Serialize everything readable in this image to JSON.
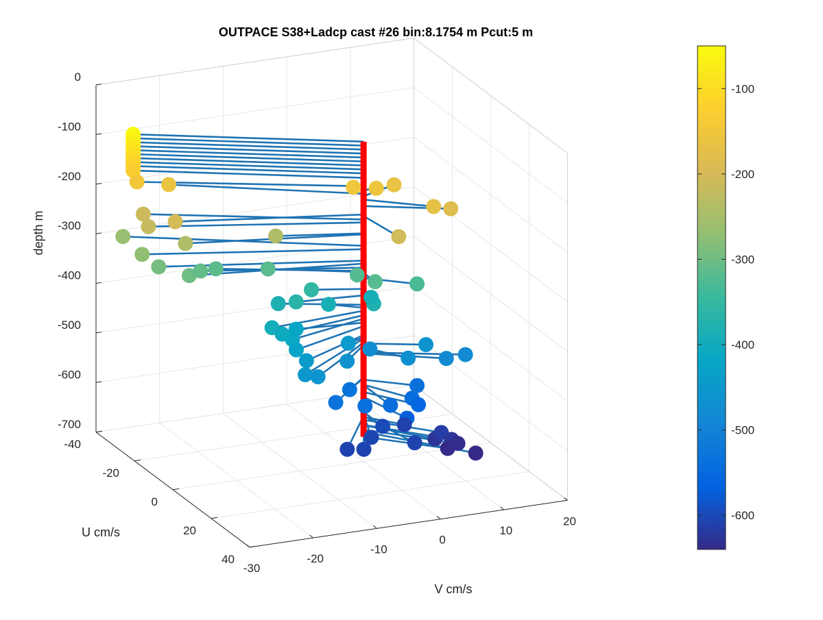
{
  "chart_data": {
    "type": "scatter",
    "title": "OUTPACE S38+Ladcp cast #26 bin:8.1754 m  Pcut:5 m",
    "xlabel": "V cm/s",
    "ylabel": "U cm/s",
    "zlabel": "depth m",
    "xlim": [
      -30,
      20
    ],
    "ylim": [
      -40,
      40
    ],
    "zlim": [
      -700,
      0
    ],
    "xticks": [
      "-30",
      "-20",
      "-10",
      "0",
      "10",
      "20"
    ],
    "yticks": [
      "-40",
      "-20",
      "0",
      "20",
      "40"
    ],
    "zticks": [
      "0",
      "-100",
      "-200",
      "-300",
      "-400",
      "-500",
      "-600",
      "-700"
    ],
    "grid": true,
    "colorbar": {
      "ticks": [
        "-100",
        "-200",
        "-300",
        "-400",
        "-500",
        "-600"
      ],
      "range": [
        -640,
        -50
      ],
      "colormap": [
        "#352a87",
        "#0363e1",
        "#1485d4",
        "#06a7c6",
        "#38b99e",
        "#92bf73",
        "#d9ba56",
        "#fcce2e",
        "#f9fb0e"
      ]
    },
    "colors": {
      "stick": "#1f73b3",
      "vertical_line": "#ff0000"
    },
    "series": [
      {
        "points": [
          {
            "v": -29,
            "u": -24,
            "depth": -55
          },
          {
            "v": -29,
            "u": -24,
            "depth": -63
          },
          {
            "v": -29,
            "u": -24,
            "depth": -71
          },
          {
            "v": -29,
            "u": -24,
            "depth": -79
          },
          {
            "v": -29,
            "u": -24,
            "depth": -87
          },
          {
            "v": -29,
            "u": -24,
            "depth": -95
          },
          {
            "v": -29,
            "u": -24,
            "depth": -103
          },
          {
            "v": -29,
            "u": -24,
            "depth": -111
          },
          {
            "v": -29,
            "u": -24,
            "depth": -119
          },
          {
            "v": -29,
            "u": -24,
            "depth": -128
          },
          {
            "v": -29,
            "u": -22,
            "depth": -145
          },
          {
            "v": -1,
            "u": -2,
            "depth": -151
          },
          {
            "v": 2,
            "u": 0,
            "depth": -153
          },
          {
            "v": 6,
            "u": -4,
            "depth": -165
          },
          {
            "v": 8,
            "u": 10,
            "depth": -172
          },
          {
            "v": -24,
            "u": -22,
            "depth": -160
          },
          {
            "v": 11,
            "u": 9,
            "depth": -185
          },
          {
            "v": -29,
            "u": -16,
            "depth": -218
          },
          {
            "v": -26,
            "u": -12,
            "depth": -202
          },
          {
            "v": 1,
            "u": 15,
            "depth": -205
          },
          {
            "v": -28,
            "u": -22,
            "depth": -212
          },
          {
            "v": -25,
            "u": -10,
            "depth": -242
          },
          {
            "v": -12,
            "u": -6,
            "depth": -240
          },
          {
            "v": -30,
            "u": -16,
            "depth": -272
          },
          {
            "v": -30,
            "u": -26,
            "depth": -265
          },
          {
            "v": -28,
            "u": -14,
            "depth": -295
          },
          {
            "v": -25,
            "u": -8,
            "depth": -301
          },
          {
            "v": -22,
            "u": -12,
            "depth": -309
          },
          {
            "v": -19,
            "u": -14,
            "depth": -316
          },
          {
            "v": -12,
            "u": -10,
            "depth": -318
          },
          {
            "v": -1,
            "u": 0,
            "depth": -322
          },
          {
            "v": 6,
            "u": 8,
            "depth": -330
          },
          {
            "v": 0,
            "u": 6,
            "depth": -320
          },
          {
            "v": -7,
            "u": -4,
            "depth": -352
          },
          {
            "v": -10,
            "u": -2,
            "depth": -365
          },
          {
            "v": -15,
            "u": 2,
            "depth": -396
          },
          {
            "v": -11,
            "u": -8,
            "depth": -384
          },
          {
            "v": -13,
            "u": 6,
            "depth": -412
          },
          {
            "v": -14,
            "u": 4,
            "depth": -405
          },
          {
            "v": -13,
            "u": 8,
            "depth": -427
          },
          {
            "v": -10,
            "u": -2,
            "depth": -420
          },
          {
            "v": -4,
            "u": -5,
            "depth": -390
          },
          {
            "v": 1,
            "u": 2,
            "depth": -378
          },
          {
            "v": 3,
            "u": -6,
            "depth": -392
          },
          {
            "v": -3,
            "u": 2,
            "depth": -450
          },
          {
            "v": -14,
            "u": 16,
            "depth": -452
          },
          {
            "v": -12,
            "u": 10,
            "depth": -445
          },
          {
            "v": -12,
            "u": 16,
            "depth": -460
          },
          {
            "v": -5,
            "u": 8,
            "depth": -465
          },
          {
            "v": 1,
            "u": 0,
            "depth": -475
          },
          {
            "v": 4,
            "u": 10,
            "depth": -470
          },
          {
            "v": 8,
            "u": 6,
            "depth": -462
          },
          {
            "v": 10,
            "u": 10,
            "depth": -482
          },
          {
            "v": 13,
            "u": 10,
            "depth": -480
          },
          {
            "v": -8,
            "u": 12,
            "depth": -531
          },
          {
            "v": -4,
            "u": 6,
            "depth": -530
          },
          {
            "v": -4,
            "u": 14,
            "depth": -540
          },
          {
            "v": 0,
            "u": 14,
            "depth": -546
          },
          {
            "v": 4,
            "u": 12,
            "depth": -545
          },
          {
            "v": 6,
            "u": 8,
            "depth": -535
          },
          {
            "v": 2,
            "u": 16,
            "depth": -570
          },
          {
            "v": 5,
            "u": 12,
            "depth": -560
          },
          {
            "v": -8,
            "u": 18,
            "depth": -608
          },
          {
            "v": -6,
            "u": 20,
            "depth": -606
          },
          {
            "v": -3,
            "u": 14,
            "depth": -605
          },
          {
            "v": 0,
            "u": 10,
            "depth": -600
          },
          {
            "v": 2,
            "u": 20,
            "depth": -608
          },
          {
            "v": 4,
            "u": 8,
            "depth": -610
          },
          {
            "v": 8,
            "u": 14,
            "depth": -616
          },
          {
            "v": 9,
            "u": 16,
            "depth": -626
          },
          {
            "v": 10,
            "u": 16,
            "depth": -636
          },
          {
            "v": 7,
            "u": 14,
            "depth": -627
          },
          {
            "v": 11,
            "u": 22,
            "depth": -640
          },
          {
            "v": 9,
            "u": 14,
            "depth": -650
          }
        ]
      }
    ]
  }
}
